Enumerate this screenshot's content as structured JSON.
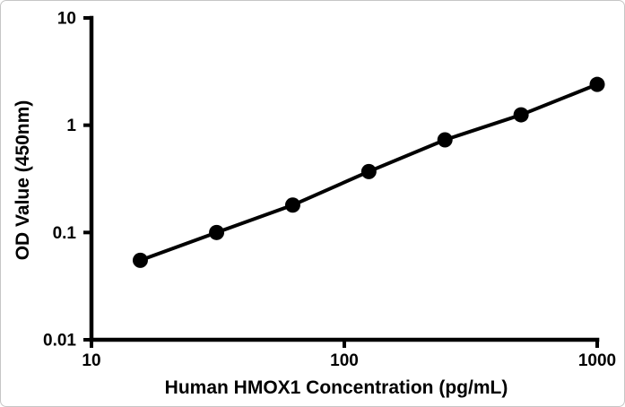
{
  "chart_data": {
    "type": "line",
    "title": "",
    "xlabel": "Human HMOX1 Concentration (pg/mL)",
    "ylabel": "OD Value (450nm)",
    "x_scale": "log",
    "y_scale": "log",
    "xlim": [
      10,
      1000
    ],
    "ylim": [
      0.01,
      10
    ],
    "x_tick_values": [
      10,
      100,
      1000
    ],
    "x_tick_labels": [
      "10",
      "100",
      "1000"
    ],
    "y_tick_values": [
      10,
      1,
      0.1,
      0.01
    ],
    "y_tick_labels": [
      "10",
      "1",
      "0.1",
      "0.01"
    ],
    "x": [
      15.6,
      31.25,
      62.5,
      125,
      250,
      500,
      1000
    ],
    "y": [
      0.055,
      0.1,
      0.18,
      0.37,
      0.73,
      1.25,
      2.4
    ],
    "marker": "circle",
    "line_color": "#000000",
    "marker_color": "#000000",
    "axis_color": "#000000",
    "background_color": "#ffffff",
    "border_color": "#c6c6c6",
    "grid": false,
    "legend": "none"
  }
}
